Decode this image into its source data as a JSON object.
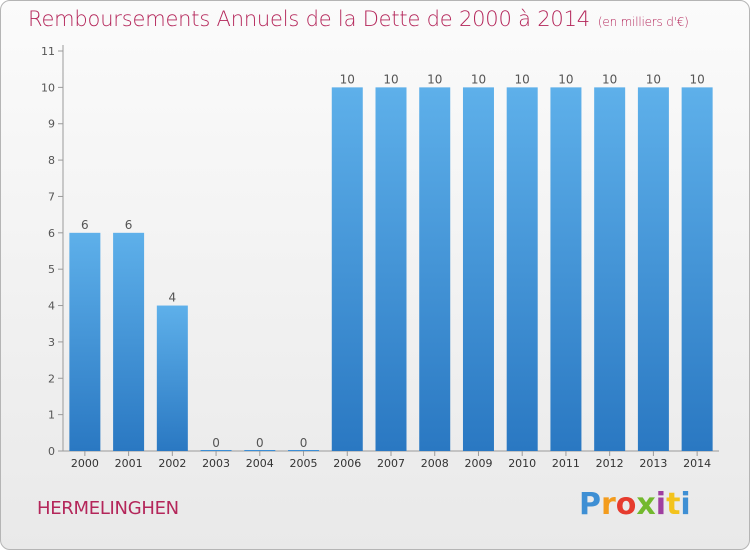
{
  "chart_data": {
    "type": "bar",
    "title": "Remboursements Annuels de la Dette de 2000 à 2014",
    "unit_note": "(en milliers d'€)",
    "categories": [
      "2000",
      "2001",
      "2002",
      "2003",
      "2004",
      "2005",
      "2006",
      "2007",
      "2008",
      "2009",
      "2010",
      "2011",
      "2012",
      "2013",
      "2014"
    ],
    "values": [
      6,
      6,
      4,
      0,
      0,
      0,
      10,
      10,
      10,
      10,
      10,
      10,
      10,
      10,
      10
    ],
    "ylim": [
      0,
      11
    ],
    "yticks": [
      0,
      1,
      2,
      3,
      4,
      5,
      6,
      7,
      8,
      9,
      10,
      11
    ],
    "xlabel": "",
    "ylabel": "",
    "grid": false,
    "bar_color": "#3d8fd6",
    "title_color": "#b4265a"
  },
  "footer": {
    "commune": "HERMELINGHEN",
    "brand_letters": [
      "P",
      "r",
      "o",
      "x",
      "i",
      "t",
      "i"
    ],
    "brand_colors": [
      "#3e8fd4",
      "#f39c1d",
      "#e63b2e",
      "#73b92e",
      "#9f3fa0",
      "#f3c31d",
      "#3e8fd4"
    ]
  }
}
